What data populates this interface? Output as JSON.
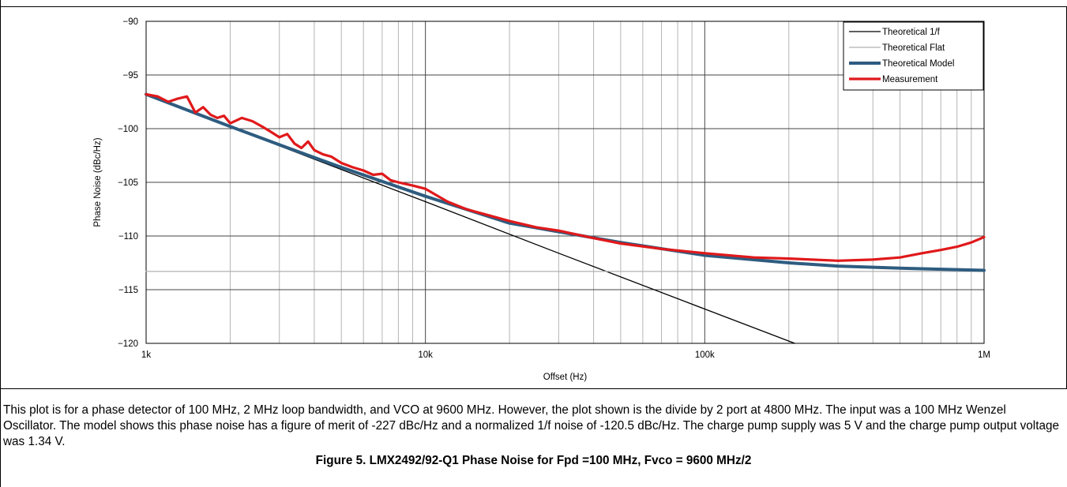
{
  "chart_data": {
    "type": "line",
    "title": "",
    "xlabel": "Offset (Hz)",
    "ylabel": "Phase Noise (dBc/Hz)",
    "x_scale": "log",
    "xlim": [
      1000,
      1000000
    ],
    "ylim": [
      -120,
      -90
    ],
    "grid": true,
    "legend_position": "top-right",
    "x_ticks": [
      {
        "value": 1000,
        "label": "1k"
      },
      {
        "value": 10000,
        "label": "10k"
      },
      {
        "value": 100000,
        "label": "100k"
      },
      {
        "value": 1000000,
        "label": "1M"
      }
    ],
    "y_ticks": [
      {
        "value": -90,
        "label": "−90"
      },
      {
        "value": -95,
        "label": "−95"
      },
      {
        "value": -100,
        "label": "−100"
      },
      {
        "value": -105,
        "label": "−105"
      },
      {
        "value": -110,
        "label": "−110"
      },
      {
        "value": -115,
        "label": "−115"
      },
      {
        "value": -120,
        "label": "−120"
      }
    ],
    "series": [
      {
        "name": "Theoretical 1/f",
        "color": "#000000",
        "x": [
          1000,
          3000,
          10000,
          30000,
          100000,
          210000
        ],
        "y": [
          -96.8,
          -101.6,
          -106.8,
          -111.6,
          -116.8,
          -120.0
        ]
      },
      {
        "name": "Theoretical Flat",
        "color": "#b0b0b0",
        "x": [
          1000,
          1000000
        ],
        "y": [
          -113.3,
          -113.3
        ]
      },
      {
        "name": "Theoretical Model",
        "color": "#2e5c80",
        "x": [
          1000,
          2000,
          3000,
          5000,
          10000,
          20000,
          30000,
          50000,
          100000,
          200000,
          300000,
          500000,
          1000000
        ],
        "y": [
          -96.8,
          -99.8,
          -101.5,
          -103.6,
          -106.3,
          -108.8,
          -109.6,
          -110.6,
          -111.8,
          -112.5,
          -112.8,
          -113.0,
          -113.2
        ]
      },
      {
        "name": "Measurement",
        "color": "#e0191b",
        "x": [
          1000,
          1100,
          1200,
          1300,
          1400,
          1500,
          1600,
          1700,
          1800,
          1900,
          2000,
          2200,
          2400,
          2600,
          2800,
          3000,
          3200,
          3400,
          3600,
          3800,
          4000,
          4300,
          4600,
          5000,
          5500,
          6000,
          6500,
          7000,
          7500,
          8000,
          9000,
          10000,
          12000,
          14000,
          17000,
          20000,
          25000,
          30000,
          40000,
          50000,
          70000,
          100000,
          150000,
          200000,
          300000,
          400000,
          500000,
          600000,
          700000,
          800000,
          900000,
          1000000
        ],
        "y": [
          -96.8,
          -97.0,
          -97.5,
          -97.2,
          -97.0,
          -98.5,
          -98.0,
          -98.7,
          -99.0,
          -98.8,
          -99.5,
          -99.0,
          -99.3,
          -99.8,
          -100.3,
          -100.8,
          -100.5,
          -101.4,
          -101.8,
          -101.2,
          -102.0,
          -102.4,
          -102.6,
          -103.2,
          -103.6,
          -103.9,
          -104.3,
          -104.2,
          -104.8,
          -105.0,
          -105.3,
          -105.6,
          -106.8,
          -107.5,
          -108.1,
          -108.6,
          -109.2,
          -109.5,
          -110.2,
          -110.7,
          -111.2,
          -111.6,
          -112.0,
          -112.1,
          -112.3,
          -112.2,
          -112.0,
          -111.6,
          -111.3,
          -111.0,
          -110.6,
          -110.1
        ]
      }
    ]
  },
  "caption": "This plot is for a phase detector of 100 MHz, 2 MHz loop bandwidth, and VCO at 9600 MHz. However, the plot shown is the divide by 2 port at 4800 MHz. The input was a 100 MHz Wenzel Oscillator. The model shows this phase noise has a figure of merit of -227 dBc/Hz and a normalized 1/f noise of -120.5 dBc/Hz. The charge pump supply was 5 V and the charge pump output voltage was 1.34 V.",
  "figure_title": "Figure 5. LMX2492/92-Q1 Phase Noise for Fpd =100 MHz, Fvco = 9600 MHz/2"
}
